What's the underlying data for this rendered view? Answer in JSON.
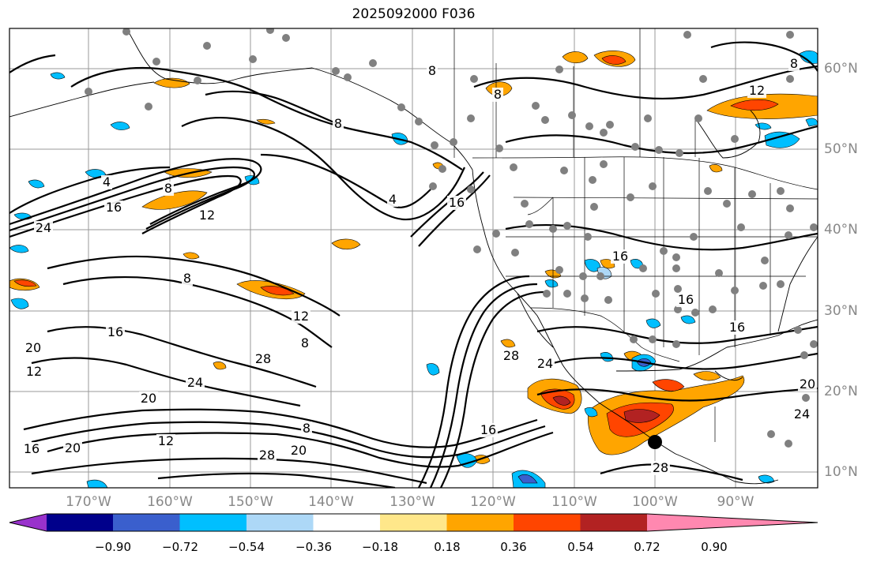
{
  "title": "2025092000 F036",
  "lat_labels": [
    "60°N",
    "50°N",
    "40°N",
    "30°N",
    "20°N",
    "10°N"
  ],
  "lon_labels": [
    "170°W",
    "160°W",
    "150°W",
    "140°W",
    "130°W",
    "120°W",
    "110°W",
    "100°W",
    "90°W"
  ],
  "colorbar": {
    "ticks": [
      "−0.90",
      "−0.72",
      "−0.54",
      "−0.36",
      "−0.18",
      "0.18",
      "0.36",
      "0.54",
      "0.72",
      "0.90"
    ],
    "colors": [
      "#9932cc",
      "#00008b",
      "#3a5fcd",
      "#00bfff",
      "#add8f7",
      "#ffffff",
      "#ffe78a",
      "#ffa500",
      "#ff4500",
      "#b22222",
      "#ff88b0"
    ]
  },
  "contour_labels": [
    {
      "text": "4"
    },
    {
      "text": "8"
    },
    {
      "text": "16"
    },
    {
      "text": "12"
    },
    {
      "text": "24"
    },
    {
      "text": "4"
    },
    {
      "text": "8"
    },
    {
      "text": "16"
    },
    {
      "text": "8"
    },
    {
      "text": "12"
    },
    {
      "text": "8"
    },
    {
      "text": "16"
    },
    {
      "text": "20"
    },
    {
      "text": "28"
    },
    {
      "text": "24"
    },
    {
      "text": "20"
    },
    {
      "text": "16"
    },
    {
      "text": "20"
    },
    {
      "text": "12"
    },
    {
      "text": "8"
    },
    {
      "text": "28"
    },
    {
      "text": "20"
    },
    {
      "text": "16"
    },
    {
      "text": "24"
    },
    {
      "text": "28"
    },
    {
      "text": "8"
    },
    {
      "text": "12"
    },
    {
      "text": "8"
    },
    {
      "text": "16"
    },
    {
      "text": "16"
    },
    {
      "text": "16"
    },
    {
      "text": "20"
    },
    {
      "text": "24"
    },
    {
      "text": "28"
    },
    {
      "text": "8"
    },
    {
      "text": "12"
    }
  ]
}
